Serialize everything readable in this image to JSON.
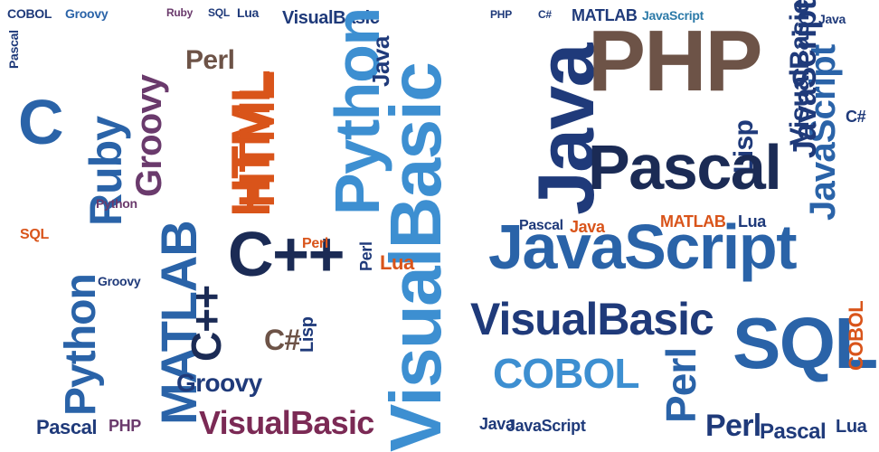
{
  "palette": {
    "navy": "#1f3a7a",
    "blue": "#2a63a8",
    "sky": "#3d8fd1",
    "dark": "#1b2b55",
    "brown": "#6d5347",
    "orange": "#d9541a",
    "purple": "#6a3a6c",
    "plum": "#7b2a55",
    "teal": "#2c7aa8"
  },
  "words": [
    "COBOL",
    "Groovy",
    "Ruby",
    "SQL",
    "Perl",
    "Lua",
    "PHP",
    "C#",
    "MATLAB",
    "JavaScript",
    "VisualBasic",
    "Java",
    "Pascal",
    "C",
    "C++",
    "Python",
    "HTML",
    "Lisp",
    "JavaScript",
    "VisualBasic",
    "Java",
    "PHP",
    "Pascal",
    "JavaScript",
    "VisualBasic",
    "COBOL",
    "SQL",
    "Perl",
    "Python",
    "Ruby",
    "MATLAB",
    "Groovy",
    "HTML",
    "C++",
    "Lua",
    "Perl",
    "Lisp",
    "Java",
    "JavaScript",
    "Pascal",
    "PHP",
    "VisualBasic",
    "Groovy",
    "C#",
    "Java",
    "COBOL",
    "Perl",
    "Pascal",
    "Lua",
    "JavaScript",
    "MATLAB",
    "VisualBasic",
    "C#",
    "Lua",
    "Java",
    "Pascal",
    "SQL",
    "Perl",
    "Python",
    "Groovy"
  ]
}
